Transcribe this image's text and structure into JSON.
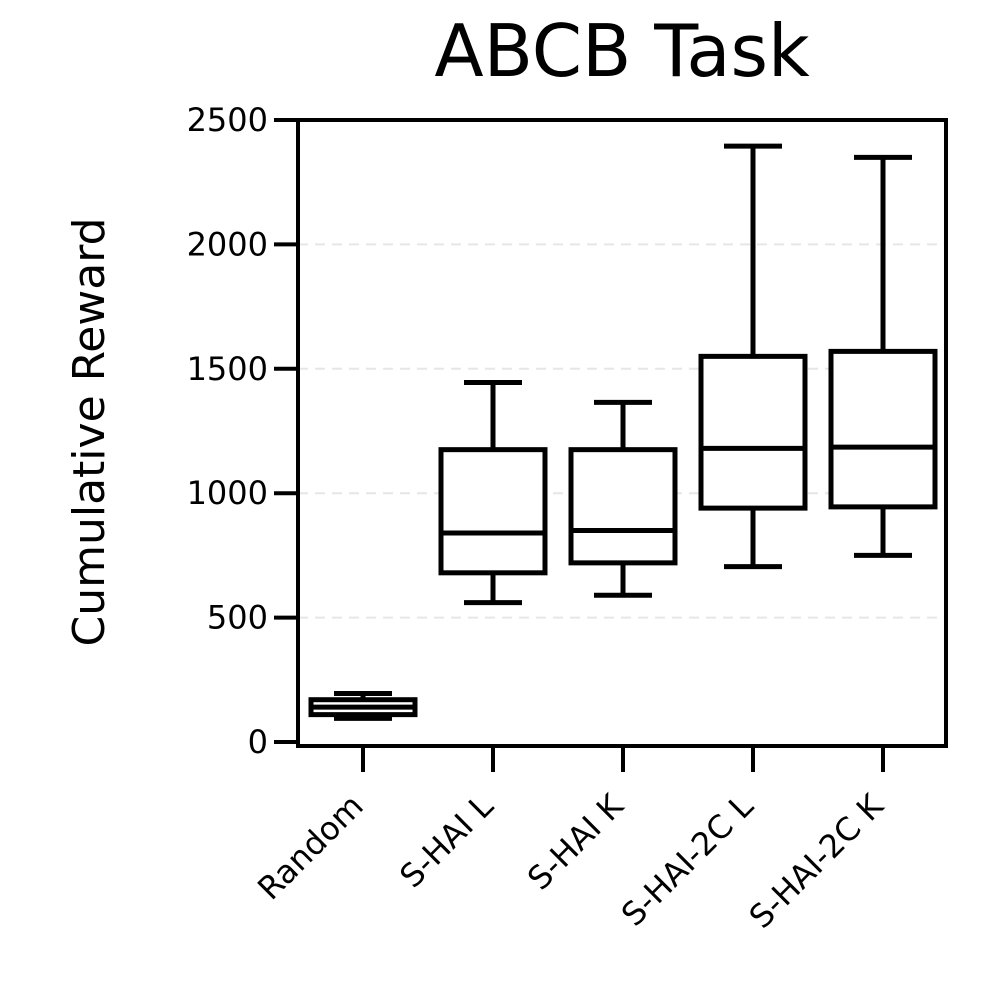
{
  "chart_data": {
    "type": "box",
    "title": "ABCB Task",
    "xlabel": "",
    "ylabel": "Cumulative Reward",
    "ylim": [
      0,
      2500
    ],
    "yticks": [
      0,
      500,
      1000,
      1500,
      2000,
      2500
    ],
    "ytick_labels": [
      "0",
      "500",
      "1000",
      "1500",
      "2000",
      "2500"
    ],
    "grid": "horizontal dashed",
    "categories": [
      "Random",
      "S-HAI L",
      "S-HAI K",
      "S-HAI-2C L",
      "S-HAI-2C K"
    ],
    "boxes": [
      {
        "category": "Random",
        "whisker_low": 95,
        "q1": 110,
        "median": 140,
        "q3": 170,
        "whisker_high": 195
      },
      {
        "category": "S-HAI L",
        "whisker_low": 560,
        "q1": 680,
        "median": 840,
        "q3": 1175,
        "whisker_high": 1445
      },
      {
        "category": "S-HAI K",
        "whisker_low": 590,
        "q1": 720,
        "median": 850,
        "q3": 1175,
        "whisker_high": 1365
      },
      {
        "category": "S-HAI-2C L",
        "whisker_low": 705,
        "q1": 940,
        "median": 1180,
        "q3": 1550,
        "whisker_high": 2395
      },
      {
        "category": "S-HAI-2C K",
        "whisker_low": 750,
        "q1": 945,
        "median": 1185,
        "q3": 1570,
        "whisker_high": 2350
      }
    ]
  }
}
